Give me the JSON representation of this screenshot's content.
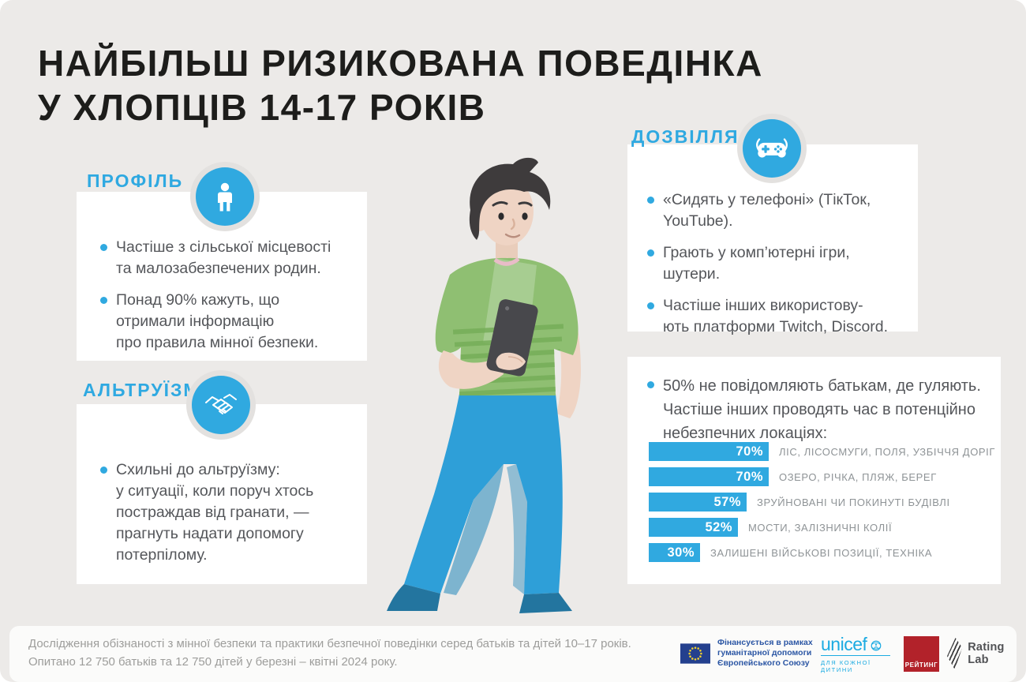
{
  "page": {
    "title_line1": "НАЙБІЛЬШ РИЗИКОВАНА ПОВЕДІНКА",
    "title_line2": "У ХЛОПЦІВ 14-17 РОКІВ"
  },
  "colors": {
    "background": "#ECEAE8",
    "card": "#FFFFFF",
    "accent_blue": "#30A9E0",
    "title_text": "#1D1D1B",
    "body_text": "#54565A",
    "bar_label_gray": "#8E9396",
    "footer_text": "#9D9D9B",
    "eu_blue": "#24408E",
    "unicef_cyan": "#1CABE2",
    "rating_red": "#B2222A"
  },
  "sections": {
    "profile": {
      "heading": "ПРОФІЛЬ",
      "icon": "person-icon",
      "bullets": [
        "Частіше з сільської місцевості\nта малозабезпечених родин.",
        "Понад 90% кажуть, що\nотримали інформацію\nпро правила мінної безпеки."
      ]
    },
    "altruism": {
      "heading": "АЛЬТРУЇЗМ",
      "icon": "handshake-icon",
      "bullets": [
        "Схильні до альтруїзму:\nу ситуації, коли поруч хтось\nпостраждав від гранати, —\nпрагнуть надати допомогу\nпотерпілому."
      ]
    },
    "leisure": {
      "heading": "ДОЗВІЛЛЯ",
      "icon": "gamepad-icon",
      "bullets": [
        "«Сидять у телефоні» (ТікТок,\nYouTube).",
        "Грають у комп’ютерні ігри,\nшутери.",
        "Частіше інших використову-\nють платформи Twitch, Discord."
      ]
    },
    "locations": {
      "intro": "50% не повідомляють батькам, де гуляють.\nЧастіше інших проводять час в потенційно\nнебезпечних локаціях:"
    }
  },
  "chart_data": {
    "type": "bar",
    "orientation": "horizontal",
    "categories": [
      "ЛІС, ЛІСОСМУГИ, ПОЛЯ, УЗБІЧЧЯ ДОРІГ",
      "ОЗЕРО, РІЧКА, ПЛЯЖ, БЕРЕГ",
      "ЗРУЙНОВАНІ ЧИ ПОКИНУТІ БУДІВЛІ",
      "МОСТИ, ЗАЛІЗНИЧНІ КОЛІЇ",
      "ЗАЛИШЕНІ ВІЙСЬКОВІ ПОЗИЦІЇ, ТЕХНІКА"
    ],
    "values": [
      70,
      70,
      57,
      52,
      30
    ],
    "unit": "%",
    "bar_color": "#30A9E0",
    "value_label_position": "inside-right",
    "xlim": [
      0,
      100
    ],
    "grid": false,
    "legend": false
  },
  "illustration": "boy-with-phone",
  "footer": {
    "line1": "Дослідження обізнаності з мінної безпеки та практики безпечної поведінки серед батьків та дітей 10–17 років.",
    "line2": "Опитано 12 750 батьків та 12 750 дітей у березні – квітні 2024 року.",
    "logos": {
      "eu": {
        "icon": "eu-flag-icon",
        "text": "Фінансується в рамках\nгуманітарної допомоги\nЄвропейського Союзу"
      },
      "unicef": {
        "wordmark": "unicef",
        "icon": "unicef-globe-icon",
        "tagline": "для кожної дитини"
      },
      "rating": {
        "wordmark": "РЕЙТИНГ"
      },
      "rating_lab": {
        "icon": "rating-lab-mark-icon",
        "wordmark": "Rating Lab"
      }
    }
  }
}
